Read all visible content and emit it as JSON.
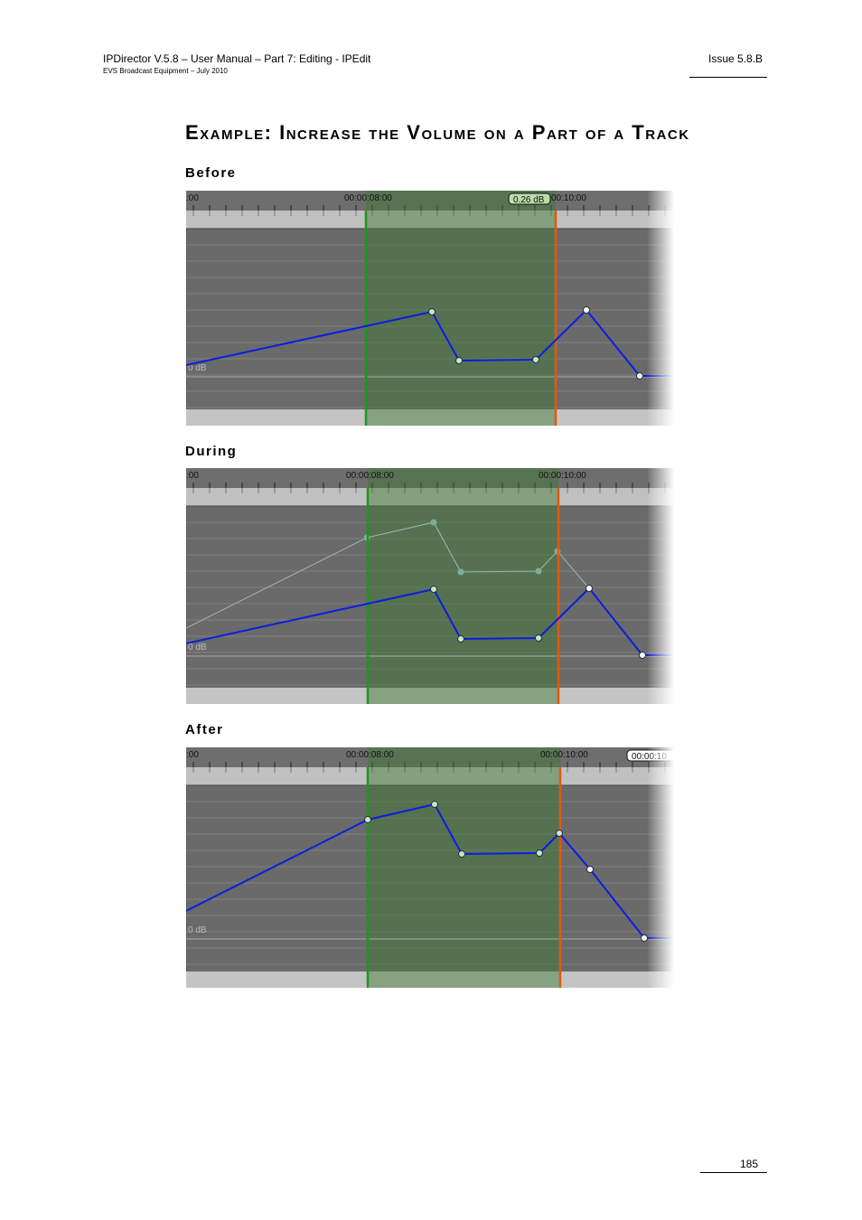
{
  "header": {
    "title": "IPDirector V.5.8 – User Manual – Part 7: Editing - IPEdit",
    "subtitle": "EVS Broadcast Equipment – July 2010",
    "issue": "Issue 5.8.B"
  },
  "section_title": "Example: Increase the Volume on a Part of a Track",
  "figures": [
    {
      "caption": "Before",
      "ruler_start": ":00",
      "mark_in": "00:00:08:00",
      "badge": "0.26 dB",
      "mark_out": "00:10:00",
      "db": "0 dB"
    },
    {
      "caption": "During",
      "ruler_start": ":00",
      "mark_in": "00:00:08:00",
      "mark_out": "00:00:10:00",
      "db": "0 dB"
    },
    {
      "caption": "After",
      "ruler_start": ":00",
      "mark_in": "00:00:08:00",
      "mark_out": "00:00:10:00",
      "badge": "00:00:10",
      "db": "0 dB"
    }
  ],
  "page_number": "185"
}
